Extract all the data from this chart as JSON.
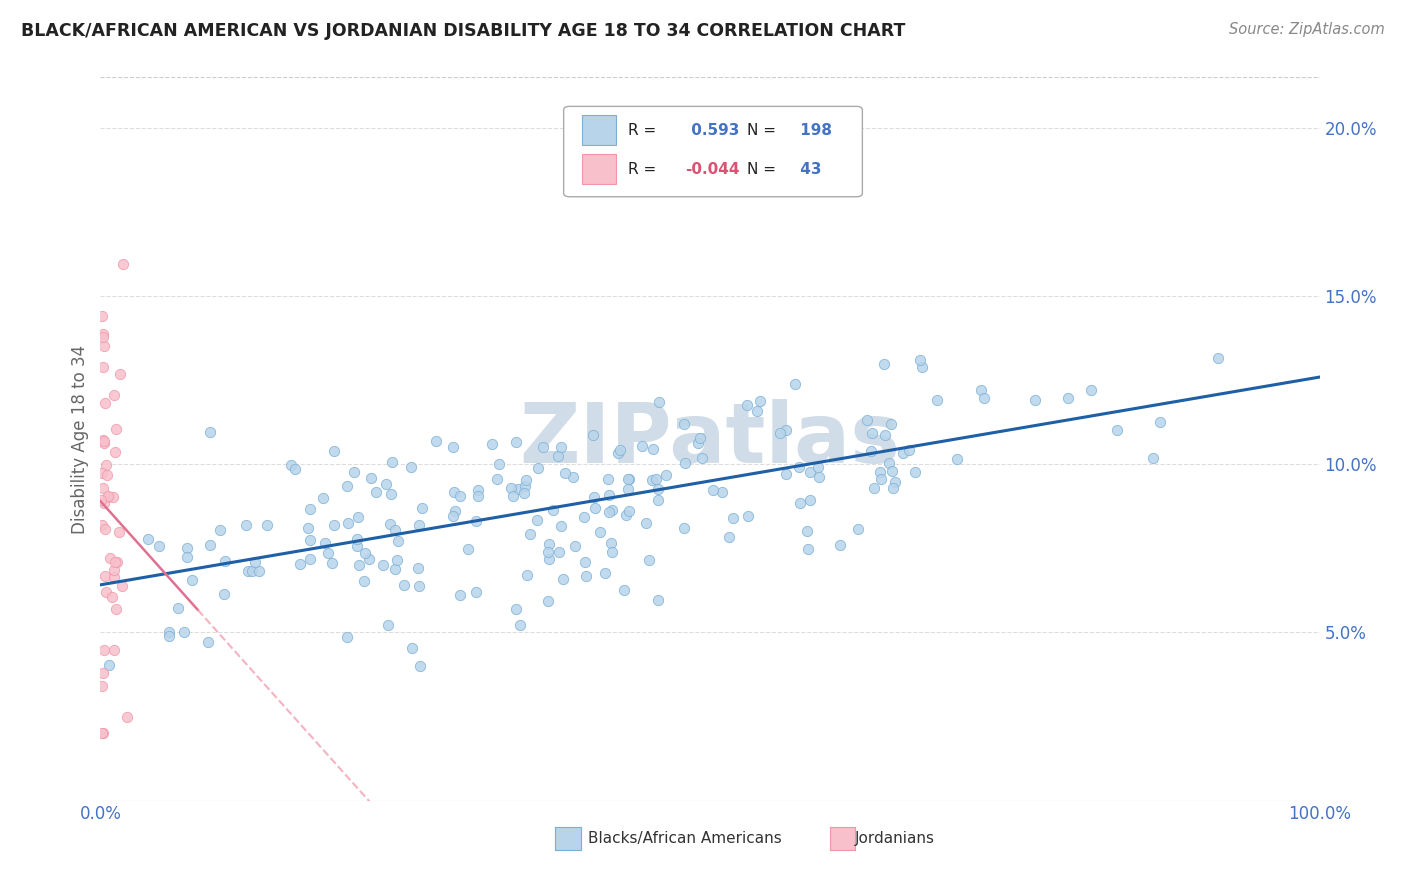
{
  "title": "BLACK/AFRICAN AMERICAN VS JORDANIAN DISABILITY AGE 18 TO 34 CORRELATION CHART",
  "source": "Source: ZipAtlas.com",
  "ylabel": "Disability Age 18 to 34",
  "blue_R": 0.593,
  "blue_N": 198,
  "pink_R": -0.044,
  "pink_N": 43,
  "blue_dot_face": "#b8d4ea",
  "blue_dot_edge": "#7bafd4",
  "pink_dot_face": "#f7c0cb",
  "pink_dot_edge": "#f096aa",
  "blue_line_color": "#1f5fa6",
  "pink_line_solid_color": "#e07090",
  "pink_line_dash_color": "#f4aabb",
  "title_color": "#222222",
  "source_color": "#888888",
  "tick_color": "#4472c4",
  "ylabel_color": "#666666",
  "watermark_color": "#d0dce8",
  "legend_text_color": "#222222",
  "legend_R_blue": "#4472c4",
  "legend_R_pink": "#e05070",
  "legend_N_color": "#4472c4",
  "xlim": [
    0.0,
    1.0
  ],
  "ylim": [
    0.0,
    0.215
  ],
  "yticks": [
    0.05,
    0.1,
    0.15,
    0.2
  ],
  "ytick_labels": [
    "5.0%",
    "10.0%",
    "15.0%",
    "20.0%"
  ],
  "xtick_labels": [
    "0.0%",
    "100.0%"
  ],
  "grid_color": "#dddddd"
}
